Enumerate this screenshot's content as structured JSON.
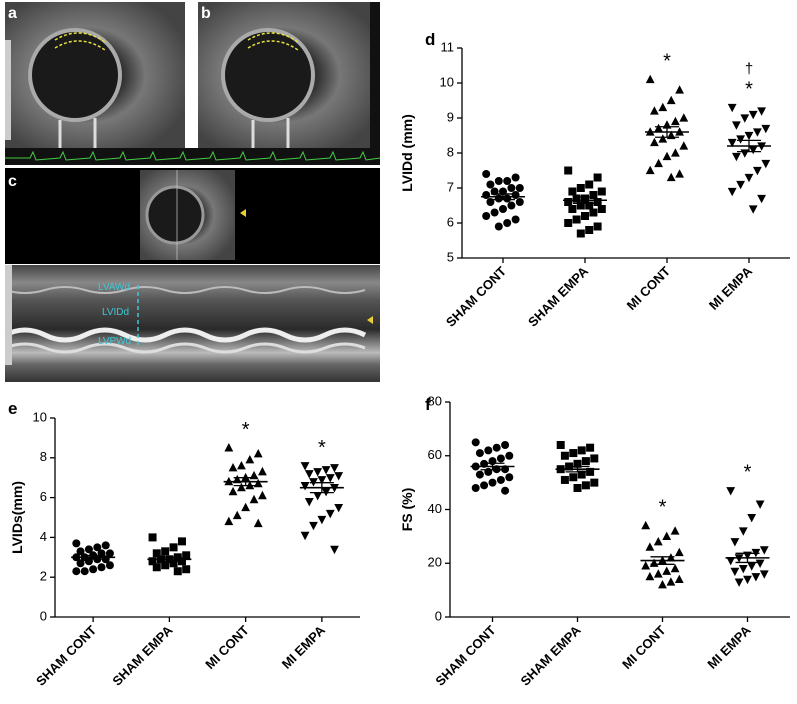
{
  "images": {
    "panels": [
      "a",
      "b",
      "c"
    ],
    "labels": [
      "LVAWd",
      "LVIDd",
      "LVPWd"
    ]
  },
  "chart_data": [
    {
      "type": "dot",
      "panel": "d",
      "ylabel": "LVIDd (mm)",
      "categories": [
        "SHAM CONT",
        "SHAM EMPA",
        "MI CONT",
        "MI EMPA"
      ],
      "markers": [
        "circle",
        "square",
        "triangle-up",
        "triangle-down"
      ],
      "color": "#000000",
      "ylim": [
        5,
        11
      ],
      "yticks": [
        5,
        6,
        7,
        8,
        9,
        10,
        11
      ],
      "groups": [
        {
          "values": [
            7.4,
            7.3,
            7.2,
            7.2,
            7.1,
            7.0,
            7.0,
            6.9,
            6.9,
            6.8,
            6.8,
            6.7,
            6.7,
            6.6,
            6.6,
            6.5,
            6.4,
            6.3,
            6.2,
            6.1,
            6.0,
            5.9
          ],
          "mean": 6.75,
          "sem": 0.08
        },
        {
          "values": [
            7.5,
            7.3,
            7.1,
            7.0,
            6.9,
            6.9,
            6.8,
            6.7,
            6.7,
            6.6,
            6.6,
            6.5,
            6.5,
            6.4,
            6.4,
            6.3,
            6.2,
            6.1,
            6.0,
            5.9,
            5.8,
            5.7
          ],
          "mean": 6.65,
          "sem": 0.09
        },
        {
          "values": [
            10.1,
            9.8,
            9.5,
            9.3,
            9.2,
            9.0,
            8.9,
            8.8,
            8.7,
            8.6,
            8.6,
            8.5,
            8.4,
            8.3,
            8.2,
            8.0,
            7.9,
            7.7,
            7.5,
            7.4,
            7.3
          ],
          "mean": 8.6,
          "sem": 0.15
        },
        {
          "values": [
            9.3,
            9.2,
            9.1,
            9.0,
            8.8,
            8.7,
            8.6,
            8.5,
            8.4,
            8.3,
            8.2,
            8.1,
            8.0,
            7.9,
            7.7,
            7.5,
            7.3,
            7.1,
            6.9,
            6.7,
            6.4
          ],
          "mean": 8.2,
          "sem": 0.16
        }
      ],
      "annotations": [
        [],
        [],
        [
          "*"
        ],
        [
          "*",
          "†"
        ]
      ]
    },
    {
      "type": "dot",
      "panel": "e",
      "ylabel": "LVIDs(mm)",
      "categories": [
        "SHAM CONT",
        "SHAM EMPA",
        "MI CONT",
        "MI EMPA"
      ],
      "markers": [
        "circle",
        "square",
        "triangle-up",
        "triangle-down"
      ],
      "color": "#000000",
      "ylim": [
        0,
        10
      ],
      "yticks": [
        0,
        2,
        4,
        6,
        8,
        10
      ],
      "groups": [
        {
          "values": [
            3.7,
            3.6,
            3.5,
            3.4,
            3.3,
            3.2,
            3.2,
            3.1,
            3.0,
            3.0,
            2.9,
            2.9,
            2.8,
            2.7,
            2.6,
            2.5,
            2.4,
            2.3,
            2.3
          ],
          "mean": 3.0,
          "sem": 0.09
        },
        {
          "values": [
            4.0,
            3.8,
            3.5,
            3.3,
            3.2,
            3.1,
            3.0,
            2.9,
            2.9,
            2.8,
            2.8,
            2.7,
            2.6,
            2.5,
            2.4,
            2.3
          ],
          "mean": 2.9,
          "sem": 0.1
        },
        {
          "values": [
            8.5,
            8.2,
            7.9,
            7.6,
            7.5,
            7.3,
            7.1,
            7.0,
            6.9,
            6.8,
            6.7,
            6.6,
            6.5,
            6.3,
            6.1,
            5.9,
            5.5,
            5.1,
            4.8,
            4.7
          ],
          "mean": 6.8,
          "sem": 0.2
        },
        {
          "values": [
            7.6,
            7.5,
            7.4,
            7.3,
            7.2,
            7.1,
            7.0,
            6.9,
            6.8,
            6.6,
            6.5,
            6.3,
            6.1,
            5.8,
            5.5,
            5.2,
            4.9,
            4.6,
            4.1,
            3.4
          ],
          "mean": 6.5,
          "sem": 0.25
        }
      ],
      "annotations": [
        [],
        [],
        [
          "*"
        ],
        [
          "*"
        ]
      ]
    },
    {
      "type": "dot",
      "panel": "f",
      "ylabel": "FS (%)",
      "categories": [
        "SHAM CONT",
        "SHAM EMPA",
        "MI CONT",
        "MI EMPA"
      ],
      "markers": [
        "circle",
        "square",
        "triangle-up",
        "triangle-down"
      ],
      "color": "#000000",
      "ylim": [
        0,
        80
      ],
      "yticks": [
        0,
        20,
        40,
        60,
        80
      ],
      "groups": [
        {
          "values": [
            65,
            64,
            63,
            62,
            61,
            60,
            59,
            58,
            57,
            56,
            55,
            55,
            54,
            53,
            52,
            51,
            50,
            49,
            48,
            47
          ],
          "mean": 56,
          "sem": 1.2
        },
        {
          "values": [
            64,
            63,
            62,
            61,
            60,
            59,
            58,
            57,
            56,
            55,
            54,
            53,
            52,
            51,
            50,
            49,
            48
          ],
          "mean": 55,
          "sem": 1.0
        },
        {
          "values": [
            34,
            32,
            30,
            28,
            26,
            24,
            22,
            21,
            20,
            19,
            18,
            17,
            16,
            15,
            14,
            13,
            12
          ],
          "mean": 21,
          "sem": 1.4
        },
        {
          "values": [
            47,
            42,
            37,
            32,
            28,
            25,
            24,
            23,
            22,
            21,
            20,
            19,
            18,
            17,
            16,
            15,
            14,
            13
          ],
          "mean": 22,
          "sem": 1.7
        }
      ],
      "annotations": [
        [],
        [],
        [
          "*"
        ],
        [
          "*"
        ]
      ]
    }
  ]
}
